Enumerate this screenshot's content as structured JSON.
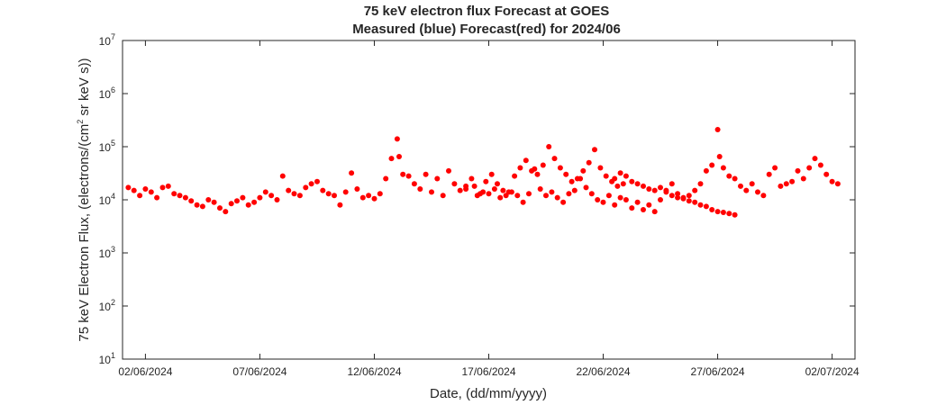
{
  "chart_data": {
    "type": "scatter",
    "title": "75 keV electron flux Forecast at GOES",
    "subtitle": "Measured (blue) Forecast(red) for 2024/06",
    "xlabel": "Date, (dd/mm/yyyy)",
    "ylabel_parts": {
      "before": "75 keV Electron Flux, (electrons/(cm",
      "sup": "2",
      "after": " sr keV s))"
    },
    "x_tick_labels": [
      "02/06/2024",
      "07/06/2024",
      "12/06/2024",
      "17/06/2024",
      "22/06/2024",
      "27/06/2024",
      "02/07/2024"
    ],
    "x_range": [
      "2024-06-01T00:00",
      "2024-07-03T00:00"
    ],
    "y_scale": "log",
    "y_range": [
      10,
      10000000
    ],
    "y_ticks": [
      {
        "base": "10",
        "exp": "1"
      },
      {
        "base": "10",
        "exp": "2"
      },
      {
        "base": "10",
        "exp": "3"
      },
      {
        "base": "10",
        "exp": "4"
      },
      {
        "base": "10",
        "exp": "5"
      },
      {
        "base": "10",
        "exp": "6"
      },
      {
        "base": "10",
        "exp": "7"
      }
    ],
    "grid": false,
    "series": [
      {
        "color": "#ff0000",
        "points": [
          [
            "2024-06-01T06:00",
            17000
          ],
          [
            "2024-06-01T12:00",
            15000
          ],
          [
            "2024-06-01T18:00",
            12000
          ],
          [
            "2024-06-02T00:00",
            16000
          ],
          [
            "2024-06-02T06:00",
            14000
          ],
          [
            "2024-06-02T12:00",
            11000
          ],
          [
            "2024-06-02T18:00",
            17000
          ],
          [
            "2024-06-03T00:00",
            18000
          ],
          [
            "2024-06-03T06:00",
            13000
          ],
          [
            "2024-06-03T12:00",
            12000
          ],
          [
            "2024-06-03T18:00",
            11000
          ],
          [
            "2024-06-04T00:00",
            9500
          ],
          [
            "2024-06-04T06:00",
            8000
          ],
          [
            "2024-06-04T12:00",
            7500
          ],
          [
            "2024-06-04T18:00",
            10000
          ],
          [
            "2024-06-05T00:00",
            9000
          ],
          [
            "2024-06-05T06:00",
            7000
          ],
          [
            "2024-06-05T12:00",
            6000
          ],
          [
            "2024-06-05T18:00",
            8500
          ],
          [
            "2024-06-06T00:00",
            9500
          ],
          [
            "2024-06-06T06:00",
            11000
          ],
          [
            "2024-06-06T12:00",
            8000
          ],
          [
            "2024-06-06T18:00",
            9000
          ],
          [
            "2024-06-07T00:00",
            11000
          ],
          [
            "2024-06-07T06:00",
            14000
          ],
          [
            "2024-06-07T12:00",
            12000
          ],
          [
            "2024-06-07T18:00",
            10000
          ],
          [
            "2024-06-08T00:00",
            28000
          ],
          [
            "2024-06-08T06:00",
            15000
          ],
          [
            "2024-06-08T12:00",
            13000
          ],
          [
            "2024-06-08T18:00",
            12000
          ],
          [
            "2024-06-09T00:00",
            17000
          ],
          [
            "2024-06-09T06:00",
            20000
          ],
          [
            "2024-06-09T12:00",
            22000
          ],
          [
            "2024-06-09T18:00",
            15000
          ],
          [
            "2024-06-10T00:00",
            13000
          ],
          [
            "2024-06-10T06:00",
            12000
          ],
          [
            "2024-06-10T12:00",
            8000
          ],
          [
            "2024-06-10T18:00",
            14000
          ],
          [
            "2024-06-11T00:00",
            32000
          ],
          [
            "2024-06-11T06:00",
            16000
          ],
          [
            "2024-06-11T12:00",
            11000
          ],
          [
            "2024-06-11T18:00",
            12000
          ],
          [
            "2024-06-12T00:00",
            10500
          ],
          [
            "2024-06-12T06:00",
            13000
          ],
          [
            "2024-06-12T12:00",
            25000
          ],
          [
            "2024-06-12T18:00",
            60000
          ],
          [
            "2024-06-13T00:00",
            140000
          ],
          [
            "2024-06-13T02:00",
            65000
          ],
          [
            "2024-06-13T06:00",
            30000
          ],
          [
            "2024-06-13T12:00",
            28000
          ],
          [
            "2024-06-13T18:00",
            20000
          ],
          [
            "2024-06-14T00:00",
            16000
          ],
          [
            "2024-06-14T06:00",
            30000
          ],
          [
            "2024-06-14T12:00",
            14000
          ],
          [
            "2024-06-14T18:00",
            25000
          ],
          [
            "2024-06-15T00:00",
            12000
          ],
          [
            "2024-06-15T06:00",
            35000
          ],
          [
            "2024-06-15T12:00",
            20000
          ],
          [
            "2024-06-15T18:00",
            15000
          ],
          [
            "2024-06-16T00:00",
            18000
          ],
          [
            "2024-06-16T06:00",
            25000
          ],
          [
            "2024-06-16T12:00",
            12000
          ],
          [
            "2024-06-16T18:00",
            14000
          ],
          [
            "2024-06-17T00:00",
            13000
          ],
          [
            "2024-06-17T06:00",
            16000
          ],
          [
            "2024-06-17T12:00",
            11000
          ],
          [
            "2024-06-17T18:00",
            12000
          ],
          [
            "2024-06-18T00:00",
            14000
          ],
          [
            "2024-06-18T06:00",
            12000
          ],
          [
            "2024-06-18T12:00",
            9000
          ],
          [
            "2024-06-18T18:00",
            13000
          ],
          [
            "2024-06-19T00:00",
            38000
          ],
          [
            "2024-06-19T06:00",
            16000
          ],
          [
            "2024-06-19T12:00",
            12000
          ],
          [
            "2024-06-19T18:00",
            14000
          ],
          [
            "2024-06-20T00:00",
            11000
          ],
          [
            "2024-06-20T06:00",
            9000
          ],
          [
            "2024-06-20T12:00",
            13000
          ],
          [
            "2024-06-20T18:00",
            15000
          ],
          [
            "2024-06-21T00:00",
            25000
          ],
          [
            "2024-06-21T06:00",
            17000
          ],
          [
            "2024-06-21T12:00",
            13000
          ],
          [
            "2024-06-21T18:00",
            10000
          ],
          [
            "2024-06-22T00:00",
            9000
          ],
          [
            "2024-06-22T06:00",
            12000
          ],
          [
            "2024-06-22T12:00",
            8000
          ],
          [
            "2024-06-22T18:00",
            11000
          ],
          [
            "2024-06-23T00:00",
            10000
          ],
          [
            "2024-06-23T06:00",
            7000
          ],
          [
            "2024-06-23T12:00",
            9000
          ],
          [
            "2024-06-23T18:00",
            6500
          ],
          [
            "2024-06-24T00:00",
            8000
          ],
          [
            "2024-06-24T06:00",
            6000
          ],
          [
            "2024-06-24T12:00",
            10000
          ],
          [
            "2024-06-24T18:00",
            15000
          ],
          [
            "2024-06-25T00:00",
            20000
          ],
          [
            "2024-06-25T06:00",
            13000
          ],
          [
            "2024-06-25T12:00",
            11000
          ],
          [
            "2024-06-25T18:00",
            12000
          ],
          [
            "2024-06-26T00:00",
            15000
          ],
          [
            "2024-06-26T06:00",
            20000
          ],
          [
            "2024-06-26T12:00",
            35000
          ],
          [
            "2024-06-26T18:00",
            45000
          ],
          [
            "2024-06-27T00:00",
            210000
          ],
          [
            "2024-06-27T02:00",
            65000
          ],
          [
            "2024-06-27T06:00",
            40000
          ],
          [
            "2024-06-27T12:00",
            28000
          ],
          [
            "2024-06-27T18:00",
            25000
          ],
          [
            "2024-06-28T00:00",
            18000
          ],
          [
            "2024-06-28T06:00",
            15000
          ],
          [
            "2024-06-28T12:00",
            20000
          ],
          [
            "2024-06-28T18:00",
            14000
          ],
          [
            "2024-06-29T00:00",
            12000
          ],
          [
            "2024-06-29T06:00",
            30000
          ],
          [
            "2024-06-29T12:00",
            40000
          ],
          [
            "2024-06-29T18:00",
            18000
          ],
          [
            "2024-06-30T00:00",
            20000
          ],
          [
            "2024-06-30T06:00",
            22000
          ],
          [
            "2024-06-30T12:00",
            35000
          ],
          [
            "2024-06-30T18:00",
            25000
          ],
          [
            "2024-07-01T00:00",
            40000
          ],
          [
            "2024-07-01T06:00",
            60000
          ],
          [
            "2024-07-01T12:00",
            45000
          ],
          [
            "2024-07-01T18:00",
            30000
          ],
          [
            "2024-07-02T00:00",
            22000
          ],
          [
            "2024-07-02T06:00",
            20000
          ],
          [
            "2024-06-16T00:00",
            16000
          ],
          [
            "2024-06-16T09:00",
            18000
          ],
          [
            "2024-06-16T15:00",
            13000
          ],
          [
            "2024-06-16T21:00",
            22000
          ],
          [
            "2024-06-17T03:00",
            30000
          ],
          [
            "2024-06-17T09:00",
            20000
          ],
          [
            "2024-06-17T15:00",
            15000
          ],
          [
            "2024-06-17T21:00",
            14000
          ],
          [
            "2024-06-18T03:00",
            28000
          ],
          [
            "2024-06-18T09:00",
            40000
          ],
          [
            "2024-06-18T15:00",
            55000
          ],
          [
            "2024-06-18T21:00",
            35000
          ],
          [
            "2024-06-19T03:00",
            30000
          ],
          [
            "2024-06-19T09:00",
            45000
          ],
          [
            "2024-06-19T15:00",
            100000
          ],
          [
            "2024-06-19T21:00",
            60000
          ],
          [
            "2024-06-20T03:00",
            40000
          ],
          [
            "2024-06-20T09:00",
            30000
          ],
          [
            "2024-06-20T15:00",
            22000
          ],
          [
            "2024-06-20T21:00",
            25000
          ],
          [
            "2024-06-21T03:00",
            35000
          ],
          [
            "2024-06-21T09:00",
            50000
          ],
          [
            "2024-06-21T15:00",
            88000
          ],
          [
            "2024-06-21T21:00",
            40000
          ],
          [
            "2024-06-22T03:00",
            28000
          ],
          [
            "2024-06-22T09:00",
            22000
          ],
          [
            "2024-06-22T15:00",
            18000
          ],
          [
            "2024-06-22T21:00",
            20000
          ],
          [
            "2024-06-22T12:00",
            25000
          ],
          [
            "2024-06-22T18:00",
            32000
          ],
          [
            "2024-06-23T00:00",
            28000
          ],
          [
            "2024-06-23T06:00",
            22000
          ],
          [
            "2024-06-23T12:00",
            20000
          ],
          [
            "2024-06-23T18:00",
            18000
          ],
          [
            "2024-06-24T00:00",
            16000
          ],
          [
            "2024-06-24T06:00",
            15000
          ],
          [
            "2024-06-24T12:00",
            17000
          ],
          [
            "2024-06-24T18:00",
            14000
          ],
          [
            "2024-06-25T00:00",
            12000
          ],
          [
            "2024-06-25T06:00",
            11000
          ],
          [
            "2024-06-25T12:00",
            10500
          ],
          [
            "2024-06-25T18:00",
            9500
          ],
          [
            "2024-06-26T00:00",
            9000
          ],
          [
            "2024-06-26T06:00",
            8000
          ],
          [
            "2024-06-26T12:00",
            7500
          ],
          [
            "2024-06-26T18:00",
            6500
          ],
          [
            "2024-06-27T00:00",
            6000
          ],
          [
            "2024-06-27T06:00",
            5800
          ],
          [
            "2024-06-27T12:00",
            5500
          ],
          [
            "2024-06-27T18:00",
            5200
          ]
        ]
      }
    ]
  }
}
